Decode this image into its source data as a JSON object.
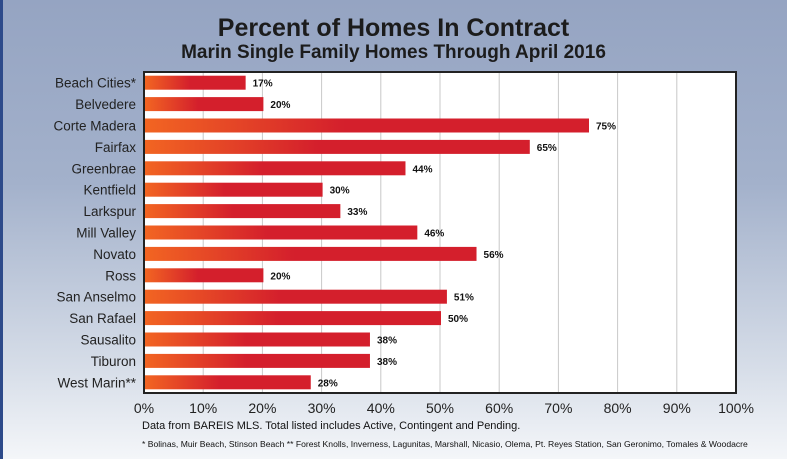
{
  "chart_data": {
    "type": "bar",
    "orientation": "horizontal",
    "title": "Percent of Homes In Contract",
    "subtitle": "Marin Single Family Homes Through April 2016",
    "categories": [
      "Beach Cities*",
      "Belvedere",
      "Corte Madera",
      "Fairfax",
      "Greenbrae",
      "Kentfield",
      "Larkspur",
      "Mill Valley",
      "Novato",
      "Ross",
      "San Anselmo",
      "San Rafael",
      "Sausalito",
      "Tiburon",
      "West Marin**"
    ],
    "values": [
      17,
      20,
      75,
      65,
      44,
      30,
      33,
      46,
      56,
      20,
      51,
      50,
      38,
      38,
      28
    ],
    "data_labels": [
      "17%",
      "20%",
      "75%",
      "65%",
      "44%",
      "30%",
      "33%",
      "46%",
      "56%",
      "20%",
      "51%",
      "50%",
      "38%",
      "38%",
      "28%"
    ],
    "xlim": [
      0,
      100
    ],
    "x_ticks": [
      "0%",
      "10%",
      "20%",
      "30%",
      "40%",
      "50%",
      "60%",
      "70%",
      "80%",
      "90%",
      "100%"
    ],
    "grid": true,
    "colors": {
      "bar_start": "#f26522",
      "bar_end": "#d41f2c"
    }
  },
  "notes": {
    "source": "Data from BAREIS MLS. Total listed includes Active, Contingent and Pending.",
    "footnote": "* Bolinas, Muir Beach, Stinson Beach      ** Forest Knolls, Inverness, Lagunitas, Marshall, Nicasio, Olema, Pt. Reyes Station, San Geronimo, Tomales & Woodacre"
  }
}
